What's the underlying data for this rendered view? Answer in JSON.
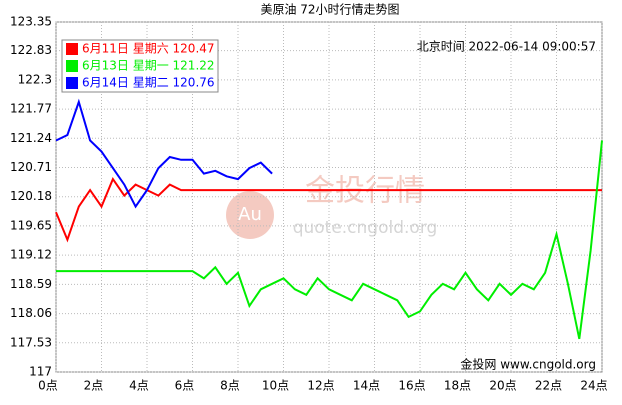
{
  "chart_data": {
    "type": "line",
    "title": "美原油 72小时行情走势图",
    "timestamp": "北京时间 2022-06-14 09:00:57",
    "watermark": "金投行情",
    "watermark_url": "quote.cngold.org",
    "watermark_badge": "Au",
    "source": "金投网 www.cngold.org",
    "x": [
      0,
      0.5,
      1,
      1.5,
      2,
      2.5,
      3,
      3.5,
      4,
      4.5,
      5,
      5.5,
      6,
      6.5,
      7,
      7.5,
      8,
      8.5,
      9,
      9.5,
      10,
      10.5,
      11,
      11.5,
      12,
      12.5,
      13,
      13.5,
      14,
      14.5,
      15,
      15.5,
      16,
      16.5,
      17,
      17.5,
      18,
      18.5,
      19,
      19.5,
      20,
      20.5,
      21,
      21.5,
      22,
      22.5,
      23,
      23.5,
      24
    ],
    "series": [
      {
        "name": "6月11日 星期六 120.47",
        "color": "#ff0000",
        "values": [
          119.9,
          119.4,
          120.0,
          120.3,
          120.0,
          120.5,
          120.2,
          120.4,
          120.3,
          120.2,
          120.4,
          120.3,
          120.3,
          120.3,
          120.3,
          120.3,
          120.3,
          120.3,
          120.3,
          120.3,
          120.3,
          120.3,
          120.3,
          120.3,
          120.3,
          120.3,
          120.3,
          120.3,
          120.3,
          120.3,
          120.3,
          120.3,
          120.3,
          120.3,
          120.3,
          120.3,
          120.3,
          120.3,
          120.3,
          120.3,
          120.3,
          120.3,
          120.3,
          120.3,
          120.3,
          120.3,
          120.3,
          120.3,
          120.3
        ]
      },
      {
        "name": "6月13日 星期一 121.22",
        "color": "#00ee00",
        "values": [
          118.83,
          118.83,
          118.83,
          118.83,
          118.83,
          118.83,
          118.83,
          118.83,
          118.83,
          118.83,
          118.83,
          118.83,
          118.83,
          118.7,
          118.9,
          118.6,
          118.8,
          118.2,
          118.5,
          118.6,
          118.7,
          118.5,
          118.4,
          118.7,
          118.5,
          118.4,
          118.3,
          118.6,
          118.5,
          118.4,
          118.3,
          118.0,
          118.1,
          118.4,
          118.6,
          118.5,
          118.8,
          118.5,
          118.3,
          118.6,
          118.4,
          118.6,
          118.5,
          118.8,
          119.5,
          118.6,
          117.6,
          119.2,
          121.2
        ]
      },
      {
        "name": "6月14日 星期二 120.76",
        "color": "#0000ff",
        "values": [
          121.2,
          121.3,
          121.9,
          121.2,
          121.0,
          120.7,
          120.4,
          120.0,
          120.3,
          120.7,
          120.9,
          120.85,
          120.85,
          120.6,
          120.65,
          120.55,
          120.5,
          120.7,
          120.8,
          120.6,
          null,
          null,
          null,
          null,
          null,
          null,
          null,
          null,
          null,
          null,
          null,
          null,
          null,
          null,
          null,
          null,
          null,
          null,
          null,
          null,
          null,
          null,
          null,
          null,
          null,
          null,
          null,
          null,
          null
        ]
      }
    ],
    "xlim": [
      0,
      24
    ],
    "xticks": [
      {
        "value": 0,
        "label": "0点"
      },
      {
        "value": 2,
        "label": "2点"
      },
      {
        "value": 4,
        "label": "4点"
      },
      {
        "value": 6,
        "label": "6点"
      },
      {
        "value": 8,
        "label": "8点"
      },
      {
        "value": 10,
        "label": "10点"
      },
      {
        "value": 12,
        "label": "12点"
      },
      {
        "value": 14,
        "label": "14点"
      },
      {
        "value": 16,
        "label": "16点"
      },
      {
        "value": 18,
        "label": "18点"
      },
      {
        "value": 20,
        "label": "20点"
      },
      {
        "value": 22,
        "label": "22点"
      },
      {
        "value": 24,
        "label": "24点"
      }
    ],
    "ylim": [
      117,
      123.35
    ],
    "yticks": [
      117,
      117.53,
      118.06,
      118.59,
      119.12,
      119.65,
      120.18,
      120.71,
      121.24,
      121.77,
      122.3,
      122.83,
      123.35
    ],
    "grid": true,
    "legend": "top-left"
  }
}
